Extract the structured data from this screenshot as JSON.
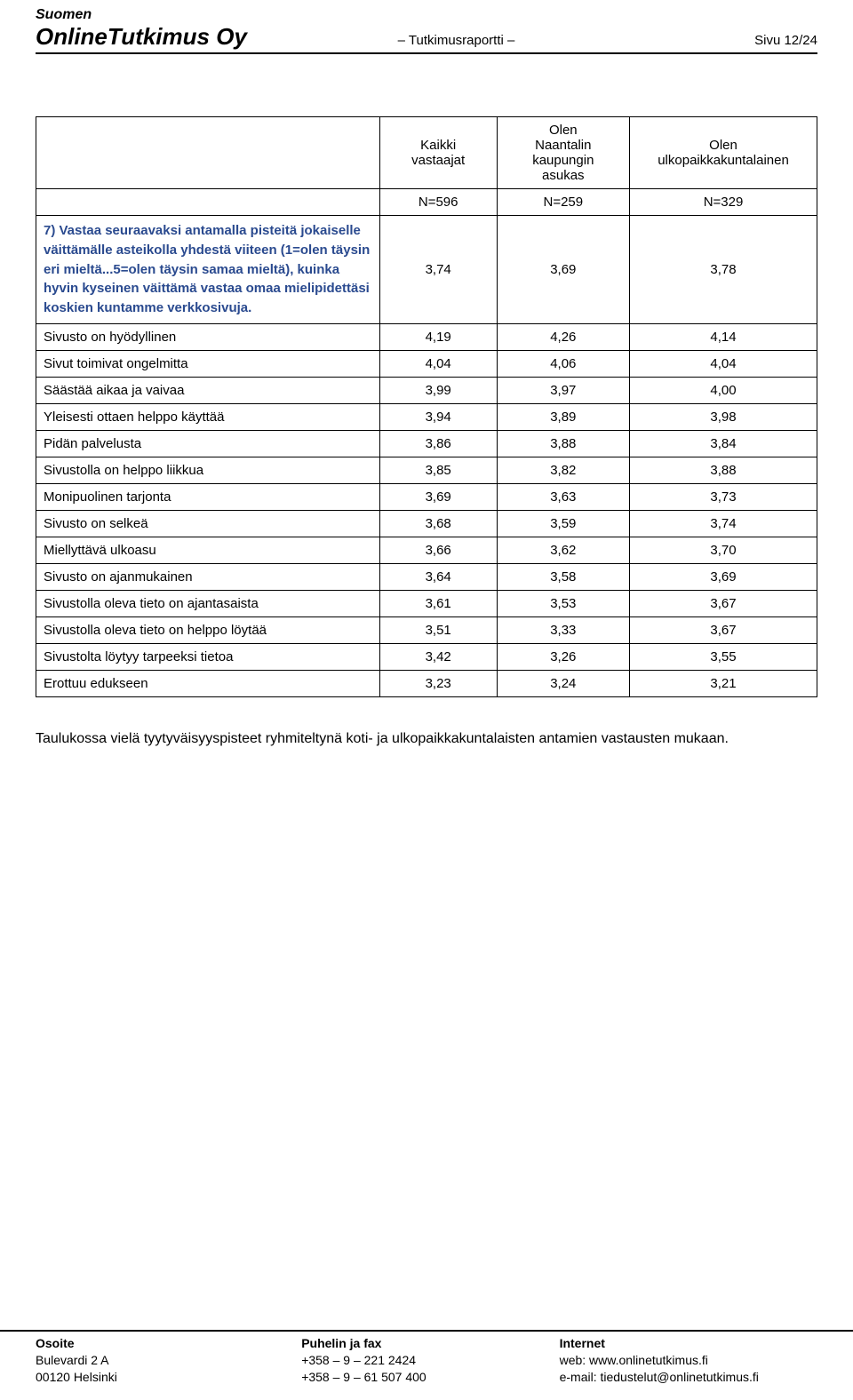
{
  "header": {
    "brand_line1": "Suomen",
    "brand_line2": "OnlineTutkimus Oy",
    "center": "– Tutkimusraportti –",
    "right": "Sivu 12/24"
  },
  "table": {
    "col_headers": {
      "blank": "",
      "c1_line1": "Kaikki",
      "c1_line2": "vastaajat",
      "c2_line0": "Olen",
      "c2_line1": "Naantalin",
      "c2_line2": "kaupungin",
      "c2_line3": "asukas",
      "c3_line0": "Olen",
      "c3_line1": "ulkopaikkakuntalainen"
    },
    "n_row": {
      "n1": "N=596",
      "n2": "N=259",
      "n3": "N=329"
    },
    "question_row": {
      "label": "7) Vastaa seuraavaksi antamalla pisteitä jokaiselle väittämälle asteikolla yhdestä viiteen (1=olen täysin eri mieltä...5=olen täysin samaa mieltä), kuinka hyvin kyseinen väittämä vastaa omaa mielipidettäsi koskien kuntamme verkkosivuja.",
      "v1": "3,74",
      "v2": "3,69",
      "v3": "3,78"
    },
    "rows": [
      {
        "label": "Sivusto on hyödyllinen",
        "v1": "4,19",
        "v2": "4,26",
        "v3": "4,14"
      },
      {
        "label": "Sivut toimivat ongelmitta",
        "v1": "4,04",
        "v2": "4,06",
        "v3": "4,04"
      },
      {
        "label": "Säästää aikaa ja vaivaa",
        "v1": "3,99",
        "v2": "3,97",
        "v3": "4,00"
      },
      {
        "label": "Yleisesti ottaen helppo käyttää",
        "v1": "3,94",
        "v2": "3,89",
        "v3": "3,98"
      },
      {
        "label": "Pidän palvelusta",
        "v1": "3,86",
        "v2": "3,88",
        "v3": "3,84"
      },
      {
        "label": "Sivustolla on helppo liikkua",
        "v1": "3,85",
        "v2": "3,82",
        "v3": "3,88"
      },
      {
        "label": "Monipuolinen tarjonta",
        "v1": "3,69",
        "v2": "3,63",
        "v3": "3,73"
      },
      {
        "label": "Sivusto on selkeä",
        "v1": "3,68",
        "v2": "3,59",
        "v3": "3,74"
      },
      {
        "label": "Miellyttävä ulkoasu",
        "v1": "3,66",
        "v2": "3,62",
        "v3": "3,70"
      },
      {
        "label": "Sivusto on ajanmukainen",
        "v1": "3,64",
        "v2": "3,58",
        "v3": "3,69"
      },
      {
        "label": "Sivustolla oleva tieto on ajantasaista",
        "v1": "3,61",
        "v2": "3,53",
        "v3": "3,67"
      },
      {
        "label": "Sivustolla oleva tieto on helppo löytää",
        "v1": "3,51",
        "v2": "3,33",
        "v3": "3,67"
      },
      {
        "label": "Sivustolta löytyy tarpeeksi tietoa",
        "v1": "3,42",
        "v2": "3,26",
        "v3": "3,55"
      },
      {
        "label": "Erottuu edukseen",
        "v1": "3,23",
        "v2": "3,24",
        "v3": "3,21"
      }
    ]
  },
  "note_text": "Taulukossa vielä tyytyväisyyspisteet ryhmiteltynä koti- ja ulkopaikkakuntalaisten antamien vastausten mukaan.",
  "footer": {
    "addr": {
      "head": "Osoite",
      "l1": "Bulevardi 2 A",
      "l2": "00120 Helsinki"
    },
    "phone": {
      "head": "Puhelin ja fax",
      "l1": "+358 – 9 – 221 2424",
      "l2": "+358 – 9 – 61 507 400"
    },
    "net": {
      "head": "Internet",
      "l1": "web: www.onlinetutkimus.fi",
      "l2": "e-mail: tiedustelut@onlinetutkimus.fi"
    }
  }
}
